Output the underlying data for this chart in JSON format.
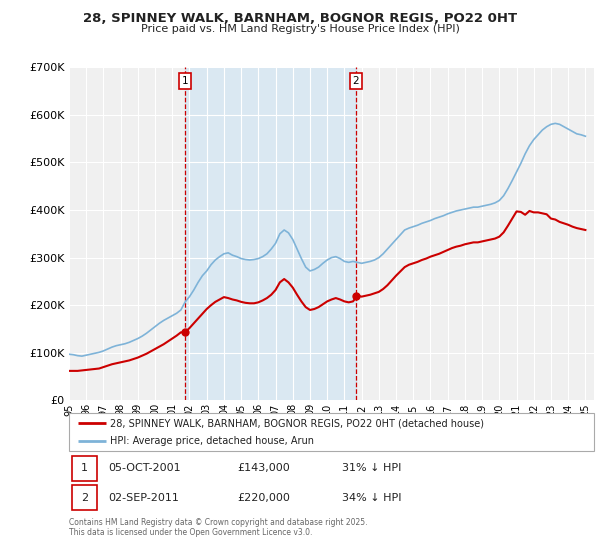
{
  "title1": "28, SPINNEY WALK, BARNHAM, BOGNOR REGIS, PO22 0HT",
  "title2": "Price paid vs. HM Land Registry's House Price Index (HPI)",
  "background_color": "#ffffff",
  "plot_bg_color": "#f0f0f0",
  "grid_color": "#ffffff",
  "red_line_label": "28, SPINNEY WALK, BARNHAM, BOGNOR REGIS, PO22 0HT (detached house)",
  "blue_line_label": "HPI: Average price, detached house, Arun",
  "footnote": "Contains HM Land Registry data © Crown copyright and database right 2025.\nThis data is licensed under the Open Government Licence v3.0.",
  "sale1_date": "05-OCT-2001",
  "sale1_price": 143000,
  "sale1_hpi": "31% ↓ HPI",
  "sale2_date": "02-SEP-2011",
  "sale2_price": 220000,
  "sale2_hpi": "34% ↓ HPI",
  "marker1_year": 2001.75,
  "marker2_year": 2011.67,
  "vline1_year": 2001.75,
  "vline2_year": 2011.67,
  "ylim_min": 0,
  "ylim_max": 700000,
  "hpi_data": {
    "years": [
      1995.0,
      1995.25,
      1995.5,
      1995.75,
      1996.0,
      1996.25,
      1996.5,
      1996.75,
      1997.0,
      1997.25,
      1997.5,
      1997.75,
      1998.0,
      1998.25,
      1998.5,
      1998.75,
      1999.0,
      1999.25,
      1999.5,
      1999.75,
      2000.0,
      2000.25,
      2000.5,
      2000.75,
      2001.0,
      2001.25,
      2001.5,
      2001.75,
      2002.0,
      2002.25,
      2002.5,
      2002.75,
      2003.0,
      2003.25,
      2003.5,
      2003.75,
      2004.0,
      2004.25,
      2004.5,
      2004.75,
      2005.0,
      2005.25,
      2005.5,
      2005.75,
      2006.0,
      2006.25,
      2006.5,
      2006.75,
      2007.0,
      2007.25,
      2007.5,
      2007.75,
      2008.0,
      2008.25,
      2008.5,
      2008.75,
      2009.0,
      2009.25,
      2009.5,
      2009.75,
      2010.0,
      2010.25,
      2010.5,
      2010.75,
      2011.0,
      2011.25,
      2011.5,
      2011.75,
      2012.0,
      2012.25,
      2012.5,
      2012.75,
      2013.0,
      2013.25,
      2013.5,
      2013.75,
      2014.0,
      2014.25,
      2014.5,
      2014.75,
      2015.0,
      2015.25,
      2015.5,
      2015.75,
      2016.0,
      2016.25,
      2016.5,
      2016.75,
      2017.0,
      2017.25,
      2017.5,
      2017.75,
      2018.0,
      2018.25,
      2018.5,
      2018.75,
      2019.0,
      2019.25,
      2019.5,
      2019.75,
      2020.0,
      2020.25,
      2020.5,
      2020.75,
      2021.0,
      2021.25,
      2021.5,
      2021.75,
      2022.0,
      2022.25,
      2022.5,
      2022.75,
      2023.0,
      2023.25,
      2023.5,
      2023.75,
      2024.0,
      2024.25,
      2024.5,
      2024.75,
      2025.0
    ],
    "values": [
      97000,
      96000,
      94000,
      93000,
      95000,
      97000,
      99000,
      101000,
      104000,
      108000,
      112000,
      115000,
      117000,
      119000,
      122000,
      126000,
      130000,
      135000,
      141000,
      148000,
      155000,
      162000,
      168000,
      173000,
      178000,
      183000,
      190000,
      207000,
      218000,
      232000,
      248000,
      262000,
      272000,
      285000,
      295000,
      302000,
      308000,
      310000,
      305000,
      302000,
      298000,
      296000,
      295000,
      296000,
      298000,
      302000,
      308000,
      318000,
      330000,
      350000,
      358000,
      352000,
      338000,
      318000,
      298000,
      280000,
      272000,
      275000,
      280000,
      288000,
      295000,
      300000,
      302000,
      298000,
      292000,
      290000,
      292000,
      290000,
      288000,
      290000,
      292000,
      295000,
      300000,
      308000,
      318000,
      328000,
      338000,
      348000,
      358000,
      362000,
      365000,
      368000,
      372000,
      375000,
      378000,
      382000,
      385000,
      388000,
      392000,
      395000,
      398000,
      400000,
      402000,
      404000,
      406000,
      406000,
      408000,
      410000,
      412000,
      415000,
      420000,
      430000,
      445000,
      462000,
      480000,
      498000,
      518000,
      535000,
      548000,
      558000,
      568000,
      575000,
      580000,
      582000,
      580000,
      575000,
      570000,
      565000,
      560000,
      558000,
      555000
    ]
  },
  "property_data": {
    "years": [
      1995.0,
      1995.25,
      1995.5,
      1995.75,
      1996.0,
      1996.25,
      1996.5,
      1996.75,
      1997.0,
      1997.25,
      1997.5,
      1997.75,
      1998.0,
      1998.25,
      1998.5,
      1998.75,
      1999.0,
      1999.25,
      1999.5,
      1999.75,
      2000.0,
      2000.25,
      2000.5,
      2000.75,
      2001.0,
      2001.25,
      2001.5,
      2001.75,
      2002.0,
      2002.25,
      2002.5,
      2002.75,
      2003.0,
      2003.25,
      2003.5,
      2003.75,
      2004.0,
      2004.25,
      2004.5,
      2004.75,
      2005.0,
      2005.25,
      2005.5,
      2005.75,
      2006.0,
      2006.25,
      2006.5,
      2006.75,
      2007.0,
      2007.25,
      2007.5,
      2007.75,
      2008.0,
      2008.25,
      2008.5,
      2008.75,
      2009.0,
      2009.25,
      2009.5,
      2009.75,
      2010.0,
      2010.25,
      2010.5,
      2010.75,
      2011.0,
      2011.25,
      2011.5,
      2011.75,
      2012.0,
      2012.25,
      2012.5,
      2012.75,
      2013.0,
      2013.25,
      2013.5,
      2013.75,
      2014.0,
      2014.25,
      2014.5,
      2014.75,
      2015.0,
      2015.25,
      2015.5,
      2015.75,
      2016.0,
      2016.25,
      2016.5,
      2016.75,
      2017.0,
      2017.25,
      2017.5,
      2017.75,
      2018.0,
      2018.25,
      2018.5,
      2018.75,
      2019.0,
      2019.25,
      2019.5,
      2019.75,
      2020.0,
      2020.25,
      2020.5,
      2020.75,
      2021.0,
      2021.25,
      2021.5,
      2021.75,
      2022.0,
      2022.25,
      2022.5,
      2022.75,
      2023.0,
      2023.25,
      2023.5,
      2023.75,
      2024.0,
      2024.25,
      2024.5,
      2024.75,
      2025.0
    ],
    "values": [
      62000,
      62000,
      62000,
      63000,
      64000,
      65000,
      66000,
      67000,
      70000,
      73000,
      76000,
      78000,
      80000,
      82000,
      84000,
      87000,
      90000,
      94000,
      98000,
      103000,
      108000,
      113000,
      118000,
      124000,
      130000,
      136000,
      143000,
      143000,
      152000,
      162000,
      172000,
      182000,
      192000,
      200000,
      207000,
      212000,
      217000,
      215000,
      212000,
      210000,
      207000,
      205000,
      204000,
      204000,
      206000,
      210000,
      215000,
      222000,
      232000,
      248000,
      255000,
      248000,
      237000,
      222000,
      208000,
      196000,
      190000,
      192000,
      196000,
      202000,
      208000,
      212000,
      215000,
      212000,
      208000,
      206000,
      208000,
      220000,
      218000,
      220000,
      222000,
      225000,
      228000,
      234000,
      242000,
      252000,
      262000,
      271000,
      280000,
      285000,
      288000,
      291000,
      295000,
      298000,
      302000,
      305000,
      308000,
      312000,
      316000,
      320000,
      323000,
      325000,
      328000,
      330000,
      332000,
      332000,
      334000,
      336000,
      338000,
      340000,
      344000,
      353000,
      367000,
      382000,
      397000,
      396000,
      390000,
      398000,
      395000,
      395000,
      393000,
      391000,
      382000,
      380000,
      375000,
      372000,
      369000,
      365000,
      362000,
      360000,
      358000
    ]
  }
}
